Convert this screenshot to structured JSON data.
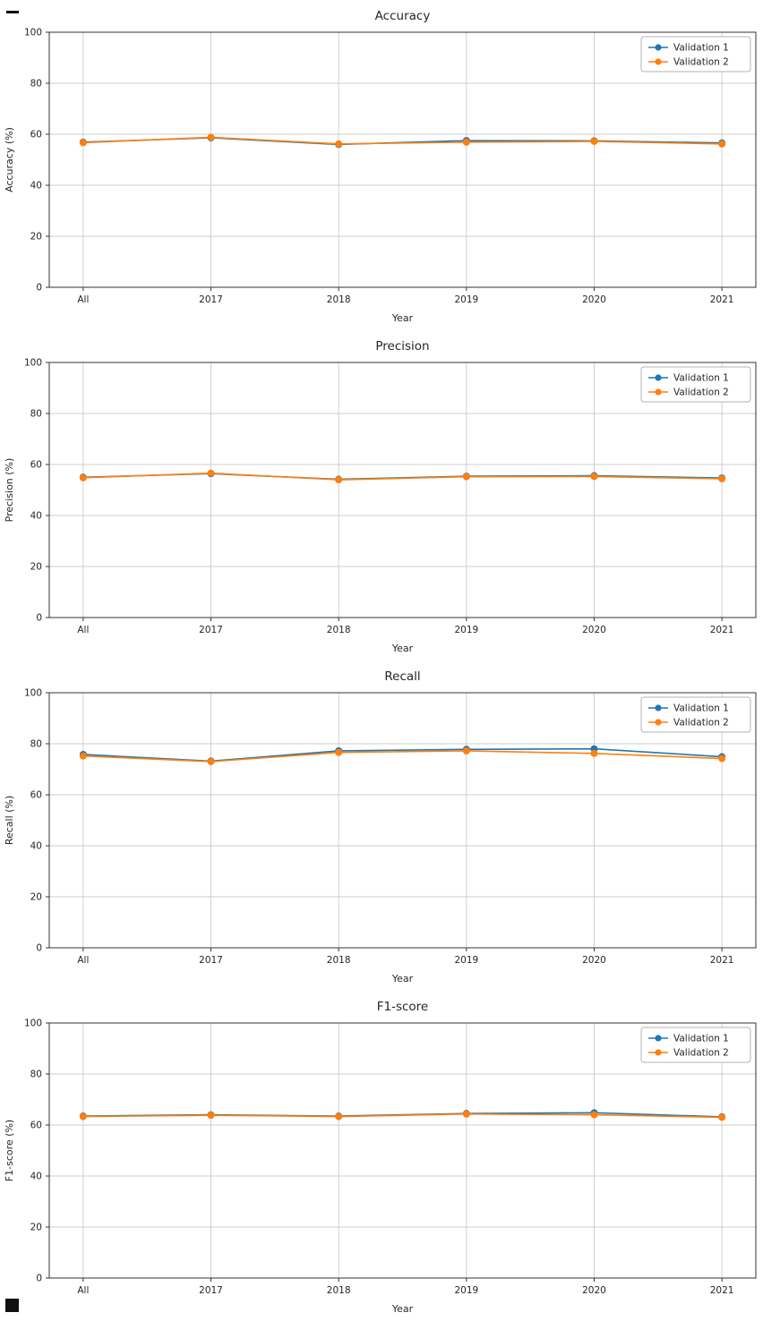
{
  "page": {
    "background": "#ffffff"
  },
  "colors": {
    "series1": "#1f77b4",
    "series2": "#ff7f0e",
    "grid": "#cccccc",
    "spine": "#333333",
    "text": "#262626",
    "legend_border": "#b3b3b3"
  },
  "chart_data": [
    {
      "type": "line",
      "title": "Accuracy",
      "xlabel": "Year",
      "ylabel": "Accuracy (%)",
      "ylim": [
        0,
        100
      ],
      "yticks": [
        0,
        20,
        40,
        60,
        80,
        100
      ],
      "grid": true,
      "legend_position": "upper right",
      "categories": [
        "All",
        "2017",
        "2018",
        "2019",
        "2020",
        "2021"
      ],
      "series": [
        {
          "name": "Validation 1",
          "color": "#1f77b4",
          "values": [
            56.9,
            58.6,
            56.0,
            57.5,
            57.4,
            56.6
          ]
        },
        {
          "name": "Validation 2",
          "color": "#ff7f0e",
          "values": [
            56.7,
            58.8,
            56.2,
            56.9,
            57.2,
            56.2
          ]
        }
      ]
    },
    {
      "type": "line",
      "title": "Precision",
      "xlabel": "Year",
      "ylabel": "Precision (%)",
      "ylim": [
        0,
        100
      ],
      "yticks": [
        0,
        20,
        40,
        60,
        80,
        100
      ],
      "grid": true,
      "legend_position": "upper right",
      "categories": [
        "All",
        "2017",
        "2018",
        "2019",
        "2020",
        "2021"
      ],
      "series": [
        {
          "name": "Validation 1",
          "color": "#1f77b4",
          "values": [
            55.0,
            56.4,
            54.2,
            55.4,
            55.6,
            54.7
          ]
        },
        {
          "name": "Validation 2",
          "color": "#ff7f0e",
          "values": [
            54.8,
            56.6,
            54.0,
            55.2,
            55.3,
            54.4
          ]
        }
      ]
    },
    {
      "type": "line",
      "title": "Recall",
      "xlabel": "Year",
      "ylabel": "Recall (%)",
      "ylim": [
        0,
        100
      ],
      "yticks": [
        0,
        20,
        40,
        60,
        80,
        100
      ],
      "grid": true,
      "legend_position": "upper right",
      "categories": [
        "All",
        "2017",
        "2018",
        "2019",
        "2020",
        "2021"
      ],
      "series": [
        {
          "name": "Validation 1",
          "color": "#1f77b4",
          "values": [
            75.8,
            73.2,
            77.2,
            77.8,
            78.0,
            74.9
          ]
        },
        {
          "name": "Validation 2",
          "color": "#ff7f0e",
          "values": [
            75.2,
            73.0,
            76.6,
            77.2,
            76.2,
            74.2
          ]
        }
      ]
    },
    {
      "type": "line",
      "title": "F1-score",
      "xlabel": "Year",
      "ylabel": "F1-score (%)",
      "ylim": [
        0,
        100
      ],
      "yticks": [
        0,
        20,
        40,
        60,
        80,
        100
      ],
      "grid": true,
      "legend_position": "upper right",
      "categories": [
        "All",
        "2017",
        "2018",
        "2019",
        "2020",
        "2021"
      ],
      "series": [
        {
          "name": "Validation 1",
          "color": "#1f77b4",
          "values": [
            63.5,
            64.0,
            63.5,
            64.5,
            64.8,
            63.2
          ]
        },
        {
          "name": "Validation 2",
          "color": "#ff7f0e",
          "values": [
            63.3,
            63.8,
            63.3,
            64.3,
            64.0,
            63.0
          ]
        }
      ]
    }
  ]
}
